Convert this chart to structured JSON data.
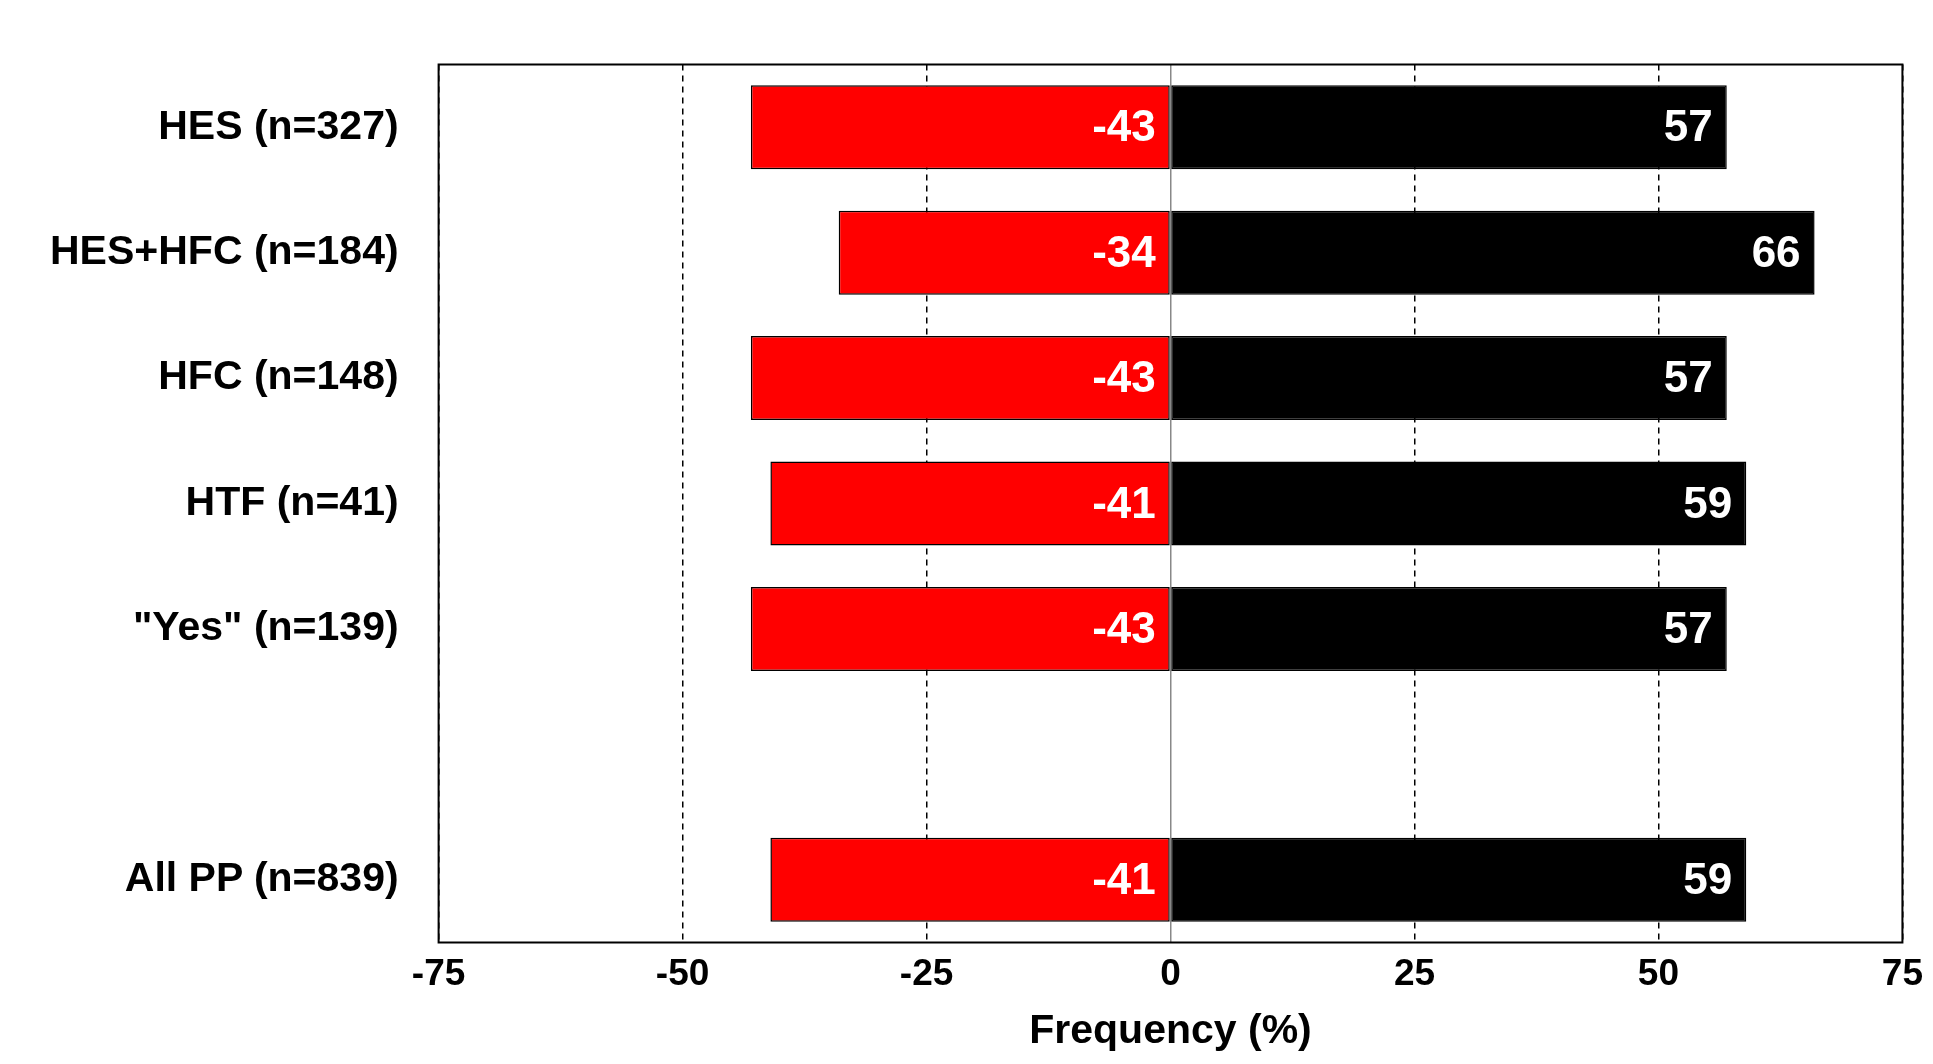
{
  "chart_data": {
    "type": "bar",
    "orientation": "horizontal",
    "stacked": true,
    "xlabel": "Frequency (%)",
    "categories": [
      "HES (n=327)",
      "HES+HFC (n=184)",
      "HFC (n=148)",
      "HTF (n=41)",
      "\"Yes\" (n=139)",
      null,
      "All PP (n=839)"
    ],
    "series": [
      {
        "color": "#ff0000",
        "values": [
          -43,
          -34,
          -43,
          -41,
          -43,
          null,
          -41
        ]
      },
      {
        "color": "#000000",
        "values": [
          57,
          66,
          57,
          59,
          57,
          null,
          59
        ]
      }
    ],
    "xlim": [
      -75,
      75
    ],
    "xticks": [
      -75,
      -50,
      -25,
      0,
      25,
      50,
      75
    ],
    "grid": "x",
    "line_style": "dashed",
    "data_labels": true,
    "legend": false
  }
}
